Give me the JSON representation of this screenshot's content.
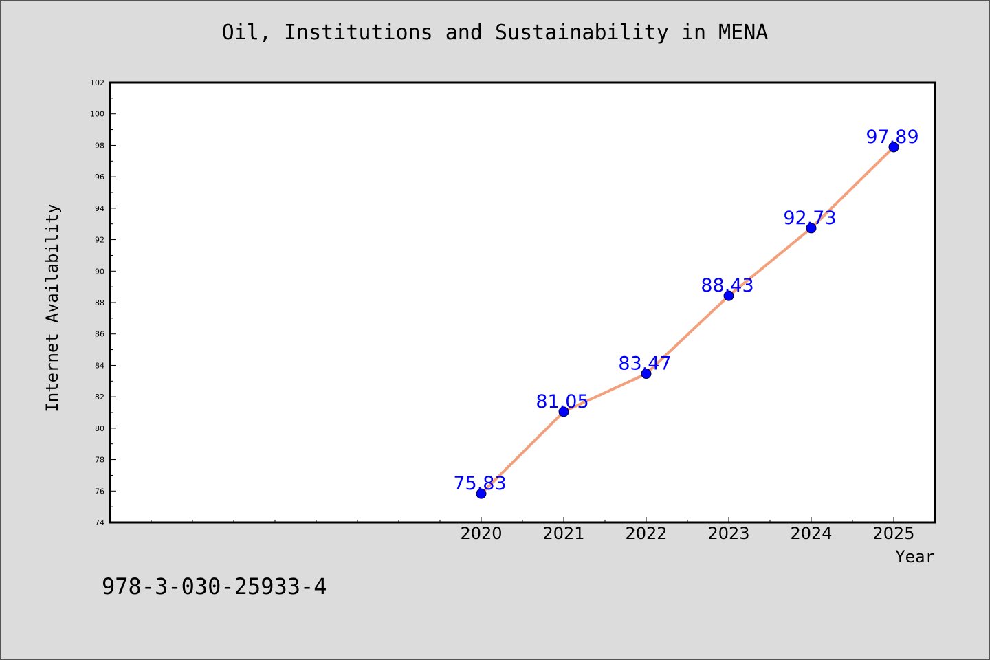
{
  "chart_data": {
    "type": "line",
    "title": "Oil, Institutions and Sustainability in MENA",
    "xlabel": "Year",
    "ylabel": "Internet Availability",
    "x": [
      2020,
      2021,
      2022,
      2023,
      2024,
      2025
    ],
    "series": [
      {
        "values": [
          75.83,
          81.05,
          83.47,
          88.43,
          92.73,
          97.89
        ],
        "labels": [
          "75.83",
          "81.05",
          "83.47",
          "88.43",
          "92.73",
          "97.89"
        ]
      }
    ],
    "xticks": [
      "2020",
      "2021",
      "2022",
      "2023",
      "2024",
      "2025"
    ],
    "xlim": [
      2015.5,
      2025.5
    ],
    "ylim": [
      74,
      102
    ],
    "yticks": [
      74,
      76,
      78,
      80,
      82,
      84,
      86,
      88,
      90,
      92,
      94,
      96,
      98,
      100,
      102
    ],
    "grid": false,
    "legend": "none",
    "colors": {
      "line": "#f4a07c",
      "marker": "#0000ff",
      "data_label": "#0000ff",
      "plot_background": "#ffffff",
      "figure_background": "#dcdcdc"
    }
  },
  "footer": {
    "isbn": "978-3-030-25933-4"
  }
}
